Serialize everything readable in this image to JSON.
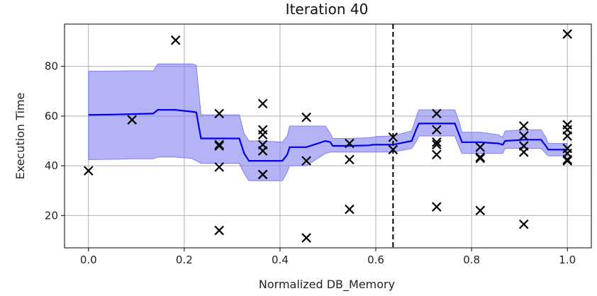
{
  "chart_data": {
    "type": "line",
    "title": "Iteration 40",
    "xlabel": "Normalized DB_Memory",
    "ylabel": "Execution Time",
    "xlim": [
      -0.05,
      1.05
    ],
    "ylim": [
      7,
      97
    ],
    "xticks": [
      0.0,
      0.2,
      0.4,
      0.6,
      0.8,
      1.0
    ],
    "xtick_labels": [
      "0.0",
      "0.2",
      "0.4",
      "0.6",
      "0.8",
      "1.0"
    ],
    "yticks": [
      20,
      40,
      60,
      80
    ],
    "ytick_labels": [
      "20",
      "40",
      "60",
      "80"
    ],
    "grid": true,
    "colors": {
      "mean": "#0000ee",
      "band": "#8080f0",
      "points": "#000000",
      "marker_line": "#000000"
    },
    "mean": {
      "x": [
        0.0,
        0.045,
        0.09,
        0.135,
        0.145,
        0.18,
        0.215,
        0.225,
        0.235,
        0.27,
        0.315,
        0.325,
        0.335,
        0.36,
        0.405,
        0.415,
        0.42,
        0.455,
        0.495,
        0.505,
        0.51,
        0.545,
        0.585,
        0.595,
        0.6,
        0.636,
        0.675,
        0.685,
        0.69,
        0.727,
        0.765,
        0.775,
        0.78,
        0.818,
        0.855,
        0.865,
        0.87,
        0.91,
        0.945,
        0.955,
        0.96,
        1.0
      ],
      "y": [
        60.5,
        60.6,
        60.8,
        61.0,
        62.5,
        62.5,
        61.8,
        61.5,
        51.0,
        51.0,
        51.0,
        45.0,
        42.0,
        42.0,
        42.0,
        44.5,
        47.5,
        47.5,
        50.0,
        49.5,
        48.0,
        48.0,
        48.2,
        48.5,
        48.5,
        48.5,
        50.0,
        55.0,
        57.0,
        57.0,
        57.0,
        52.0,
        49.5,
        49.5,
        49.0,
        48.5,
        50.0,
        50.5,
        50.5,
        48.0,
        46.5,
        46.5
      ]
    },
    "band": {
      "upper": [
        78.0,
        78.1,
        78.2,
        78.2,
        81.0,
        81.0,
        81.0,
        80.5,
        60.5,
        60.5,
        60.5,
        53.0,
        50.0,
        50.0,
        49.5,
        52.0,
        56.0,
        56.0,
        56.0,
        53.0,
        51.0,
        51.0,
        51.3,
        51.5,
        51.8,
        52.0,
        54.0,
        60.0,
        62.5,
        62.5,
        62.5,
        57.0,
        53.5,
        53.5,
        52.5,
        51.5,
        54.0,
        54.5,
        54.5,
        51.5,
        49.0,
        49.0
      ],
      "lower": [
        42.5,
        42.6,
        42.8,
        42.8,
        43.5,
        43.5,
        43.0,
        42.0,
        41.0,
        41.0,
        41.0,
        37.0,
        34.0,
        34.0,
        34.0,
        37.5,
        40.0,
        40.0,
        45.0,
        45.5,
        45.5,
        45.5,
        45.5,
        45.5,
        45.5,
        45.5,
        47.0,
        50.0,
        52.0,
        52.0,
        52.0,
        47.0,
        45.0,
        45.0,
        45.0,
        45.0,
        47.0,
        47.0,
        47.0,
        45.0,
        44.0,
        44.0
      ]
    },
    "observations": {
      "marker": "x",
      "x": [
        0.0,
        0.091,
        0.182,
        0.273,
        0.273,
        0.273,
        0.273,
        0.273,
        0.364,
        0.364,
        0.364,
        0.364,
        0.364,
        0.364,
        0.364,
        0.455,
        0.455,
        0.455,
        0.545,
        0.545,
        0.545,
        0.636,
        0.636,
        0.727,
        0.727,
        0.727,
        0.727,
        0.727,
        0.727,
        0.818,
        0.818,
        0.818,
        0.818,
        0.909,
        0.909,
        0.909,
        0.909,
        0.909,
        1.0,
        1.0,
        1.0,
        1.0,
        1.0,
        1.0,
        1.0,
        1.0
      ],
      "y": [
        38.0,
        58.5,
        90.5,
        61.0,
        48.5,
        48.0,
        39.5,
        14.0,
        65.0,
        54.5,
        52.5,
        48.5,
        46.0,
        36.5,
        36.5,
        59.5,
        42.0,
        11.0,
        49.0,
        42.5,
        22.5,
        51.5,
        46.5,
        61.0,
        54.5,
        49.5,
        48.5,
        44.5,
        23.5,
        47.5,
        43.5,
        43.0,
        22.0,
        56.0,
        52.0,
        48.0,
        45.5,
        16.5,
        93.0,
        56.5,
        54.5,
        52.0,
        47.0,
        45.0,
        42.5,
        42.0
      ]
    },
    "vline": {
      "x": 0.636,
      "style": "dashed",
      "color": "#000000"
    }
  }
}
